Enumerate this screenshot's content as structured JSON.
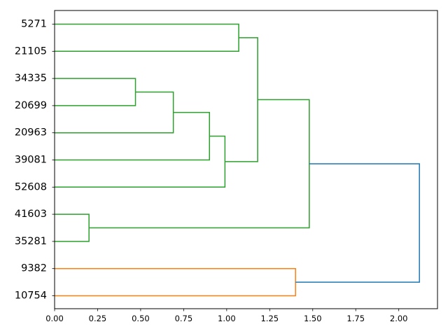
{
  "chart_data": {
    "type": "dendrogram",
    "orientation": "left",
    "title": "",
    "xlabel": "",
    "ylabel": "",
    "xlim": [
      0,
      2.225
    ],
    "x_ticks": [
      0.0,
      0.25,
      0.5,
      0.75,
      1.0,
      1.25,
      1.5,
      1.75,
      2.0
    ],
    "x_tick_labels": [
      "0.00",
      "0.25",
      "0.50",
      "0.75",
      "1.00",
      "1.25",
      "1.50",
      "1.75",
      "2.00"
    ],
    "leaves": [
      "5271",
      "21105",
      "34335",
      "20699",
      "20963",
      "39081",
      "52608",
      "41603",
      "35281",
      "9382",
      "10754"
    ],
    "merges": [
      {
        "a": "34335",
        "b": "20699",
        "height": 0.47,
        "color": "#2ca02c"
      },
      {
        "a": "41603",
        "b": "35281",
        "height": 0.2,
        "color": "#2ca02c"
      },
      {
        "a": "m0",
        "b": "20963",
        "height": 0.69,
        "color": "#2ca02c"
      },
      {
        "a": "m2",
        "b": "39081",
        "height": 0.9,
        "color": "#2ca02c"
      },
      {
        "a": "m3",
        "b": "52608",
        "height": 0.99,
        "color": "#2ca02c"
      },
      {
        "a": "5271",
        "b": "21105",
        "height": 1.07,
        "color": "#2ca02c"
      },
      {
        "a": "m5",
        "b": "m4",
        "height": 1.18,
        "color": "#2ca02c"
      },
      {
        "a": "9382",
        "b": "10754",
        "height": 1.4,
        "color": "#ff7f0e"
      },
      {
        "a": "m6",
        "b": "m1",
        "height": 1.48,
        "color": "#2ca02c"
      },
      {
        "a": "m8",
        "b": "m7",
        "height": 2.12,
        "color": "#1f77b4"
      }
    ]
  }
}
